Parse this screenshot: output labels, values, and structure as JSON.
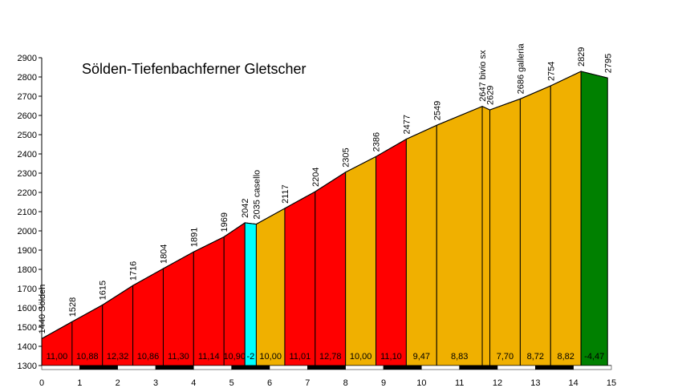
{
  "chart_data": {
    "type": "area",
    "title": "Sölden-Tiefenbachferner Gletscher",
    "xlabel": "",
    "ylabel": "",
    "xlim": [
      0,
      15
    ],
    "ylim": [
      1300,
      2900
    ],
    "x_ticks": [
      0,
      1,
      2,
      3,
      4,
      5,
      6,
      7,
      8,
      9,
      10,
      11,
      12,
      13,
      14,
      15
    ],
    "y_ticks": [
      1300,
      1400,
      1500,
      1600,
      1700,
      1800,
      1900,
      2000,
      2100,
      2200,
      2300,
      2400,
      2500,
      2600,
      2700,
      2800,
      2900
    ],
    "grid": false,
    "points": [
      {
        "x": 0,
        "y": 1440,
        "label": "1440 Sölden"
      },
      {
        "x": 0.8,
        "y": 1528,
        "label": "1528"
      },
      {
        "x": 1.6,
        "y": 1615,
        "label": "1615"
      },
      {
        "x": 2.4,
        "y": 1716,
        "label": "1716"
      },
      {
        "x": 3.2,
        "y": 1804,
        "label": "1804"
      },
      {
        "x": 4.0,
        "y": 1891,
        "label": "1891"
      },
      {
        "x": 4.8,
        "y": 1969,
        "label": "1969"
      },
      {
        "x": 5.35,
        "y": 2042,
        "label": "2042"
      },
      {
        "x": 5.65,
        "y": 2035,
        "label": "2035 casello"
      },
      {
        "x": 6.4,
        "y": 2117,
        "label": "2117"
      },
      {
        "x": 7.2,
        "y": 2204,
        "label": "2204"
      },
      {
        "x": 8.0,
        "y": 2305,
        "label": "2305"
      },
      {
        "x": 8.8,
        "y": 2386,
        "label": "2386"
      },
      {
        "x": 9.6,
        "y": 2477,
        "label": "2477"
      },
      {
        "x": 10.4,
        "y": 2549,
        "label": "2549"
      },
      {
        "x": 11.6,
        "y": 2647,
        "label": "2647 bivio sx"
      },
      {
        "x": 11.8,
        "y": 2629,
        "label": "2629"
      },
      {
        "x": 12.6,
        "y": 2686,
        "label": "2686 galleria"
      },
      {
        "x": 13.4,
        "y": 2754,
        "label": "2754"
      },
      {
        "x": 14.2,
        "y": 2829,
        "label": "2829"
      },
      {
        "x": 14.9,
        "y": 2795,
        "label": "2795"
      }
    ],
    "segments": [
      {
        "gradient": "11,00",
        "color": "#ff0000"
      },
      {
        "gradient": "10,88",
        "color": "#ff0000"
      },
      {
        "gradient": "12,32",
        "color": "#ff0000"
      },
      {
        "gradient": "10,86",
        "color": "#ff0000"
      },
      {
        "gradient": "11,30",
        "color": "#ff0000"
      },
      {
        "gradient": "11,14",
        "color": "#ff0000"
      },
      {
        "gradient": "10,90",
        "color": "#ff0000"
      },
      {
        "gradient": "-2",
        "color": "#00ffff"
      },
      {
        "gradient": "10,00",
        "color": "#f0b000"
      },
      {
        "gradient": "11,01",
        "color": "#ff0000"
      },
      {
        "gradient": "12,78",
        "color": "#ff0000"
      },
      {
        "gradient": "10,00",
        "color": "#f0b000"
      },
      {
        "gradient": "11,10",
        "color": "#ff0000"
      },
      {
        "gradient": "9,47",
        "color": "#f0b000"
      },
      {
        "gradient": "8,83",
        "color": "#f0b000"
      },
      {
        "gradient": "",
        "color": "#f0b000"
      },
      {
        "gradient": "7,70",
        "color": "#f0b000"
      },
      {
        "gradient": "8,72",
        "color": "#f0b000"
      },
      {
        "gradient": "8,82",
        "color": "#f0b000"
      },
      {
        "gradient": "-4,47",
        "color": "#008000"
      }
    ]
  }
}
